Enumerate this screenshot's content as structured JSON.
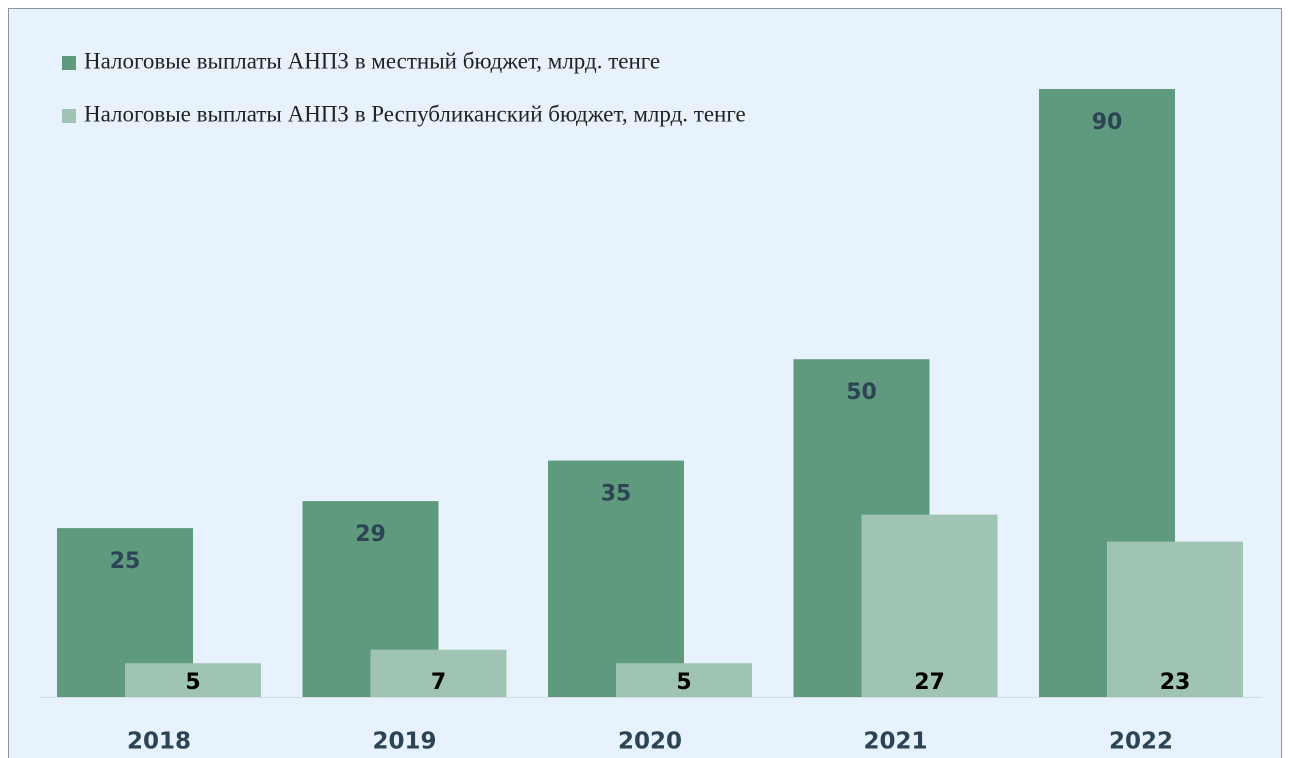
{
  "chart_data": {
    "type": "bar",
    "categories": [
      "2018",
      "2019",
      "2020",
      "2021",
      "2022"
    ],
    "series": [
      {
        "name": "Налоговые выплаты АНПЗ в местный бюджет, млрд. тенге",
        "color": "#5f9a7e",
        "values": [
          25,
          29,
          35,
          50,
          90
        ]
      },
      {
        "name": "Налоговые выплаты АНПЗ в Республиканский бюджет, млрд. тенге",
        "color": "#a0c4b3",
        "values": [
          5,
          7,
          5,
          27,
          23
        ]
      }
    ],
    "ylim": [
      0,
      90
    ]
  }
}
